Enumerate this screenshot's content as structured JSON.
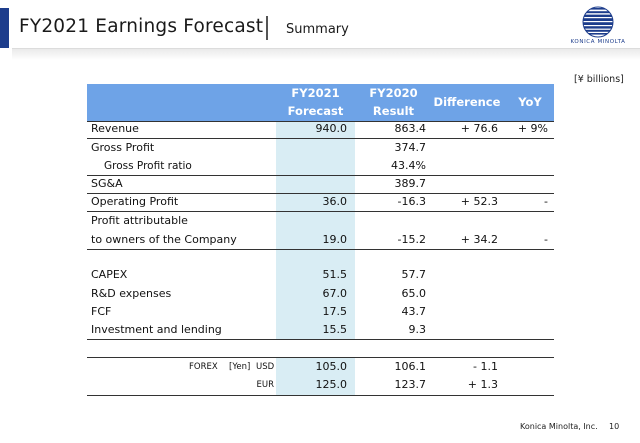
{
  "header": {
    "title": "FY2021 Earnings Forecast",
    "subtitle": "Summary",
    "logo_text": "KONICA MINOLTA",
    "brand_color": "#1d3d8c"
  },
  "unit_note": "[¥ billions]",
  "table": {
    "headers": {
      "fy2021_line1": "FY2021",
      "fy2021_line2": "Forecast",
      "fy2020_line1": "FY2020",
      "fy2020_line2": "Result",
      "difference": "Difference",
      "yoy": "YoY"
    },
    "header_color": "#6ea3e7",
    "highlight_color": "#d9edf4",
    "rows": {
      "revenue": {
        "label": "Revenue",
        "fy2021": "940.0",
        "fy2020": "863.4",
        "diff": "+ 76.6",
        "yoy": "+ 9%"
      },
      "gross_profit": {
        "label": "Gross Profit",
        "fy2021": "",
        "fy2020": "374.7",
        "diff": "",
        "yoy": ""
      },
      "gross_profit_ratio": {
        "label": "Gross Profit ratio",
        "fy2021": "",
        "fy2020": "43.4%",
        "diff": "",
        "yoy": ""
      },
      "sga": {
        "label": "SG&A",
        "fy2021": "",
        "fy2020": "389.7",
        "diff": "",
        "yoy": ""
      },
      "operating_profit": {
        "label": "Operating Profit",
        "fy2021": "36.0",
        "fy2020": "-16.3",
        "diff": "+ 52.3",
        "yoy": "-"
      },
      "profit_attr": {
        "label_line1": "Profit attributable",
        "label_line2": "to owners of the Company",
        "fy2021": "19.0",
        "fy2020": "-15.2",
        "diff": "+ 34.2",
        "yoy": "-"
      },
      "capex": {
        "label": "CAPEX",
        "fy2021": "51.5",
        "fy2020": "57.7"
      },
      "rnd": {
        "label": "R&D expenses",
        "fy2021": "67.0",
        "fy2020": "65.0"
      },
      "fcf": {
        "label": "FCF",
        "fy2021": "17.5",
        "fy2020": "43.7"
      },
      "investment": {
        "label": "Investment and lending",
        "fy2021": "15.5",
        "fy2020": "9.3"
      }
    },
    "forex": {
      "label": "FOREX",
      "unit": "[Yen]",
      "usd": {
        "label": "USD",
        "fy2021": "105.0",
        "fy2020": "106.1",
        "diff": "- 1.1"
      },
      "eur": {
        "label": "EUR",
        "fy2021": "125.0",
        "fy2020": "123.7",
        "diff": "+ 1.3"
      }
    }
  },
  "footer": {
    "company": "Konica Minolta, Inc.",
    "page": "10"
  }
}
